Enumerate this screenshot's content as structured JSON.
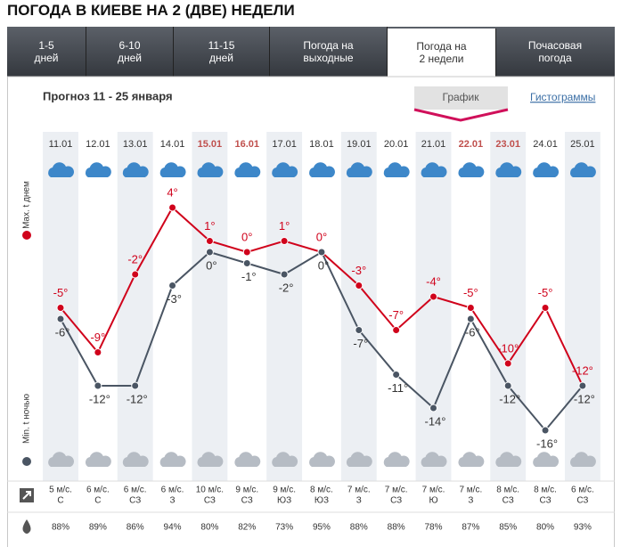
{
  "header": {
    "title": "ПОГОДА В КИЕВЕ НА 2 (ДВЕ) НЕДЕЛИ"
  },
  "tabs": [
    {
      "line1": "1-5",
      "line2": "дней"
    },
    {
      "line1": "6-10",
      "line2": "дней"
    },
    {
      "line1": "11-15",
      "line2": "дней"
    },
    {
      "line1": "Погода на",
      "line2": "выходные"
    },
    {
      "line1": "Погода на",
      "line2": "2 недели"
    },
    {
      "line1": "Почасовая",
      "line2": "погода"
    }
  ],
  "forecast_title": "Прогноз 11 - 25 января",
  "view_buttons": [
    "График",
    "Гистограммы"
  ],
  "chart_data": {
    "type": "line",
    "categories": [
      "11.01",
      "12.01",
      "13.01",
      "14.01",
      "15.01",
      "16.01",
      "17.01",
      "18.01",
      "19.01",
      "20.01",
      "21.01",
      "22.01",
      "23.01",
      "24.01",
      "25.01"
    ],
    "category_colors": [
      "#333",
      "#333",
      "#333",
      "#333",
      "#c0504d",
      "#c0504d",
      "#333",
      "#333",
      "#333",
      "#333",
      "#333",
      "#c0504d",
      "#c0504d",
      "#333",
      "#333"
    ],
    "series": [
      {
        "name": "Max. t днем",
        "color": "#d0021b",
        "values": [
          -5,
          -9,
          -2,
          4,
          1,
          0,
          1,
          0,
          -3,
          -7,
          -4,
          -5,
          -10,
          -5,
          -12
        ],
        "value_labels": [
          "-5°",
          "-9°",
          "-2°",
          "4°",
          "1°",
          "0°",
          "1°",
          "0°",
          "-3°",
          "-7°",
          "-4°",
          "-5°",
          "-10°",
          "-5°",
          "-12°"
        ]
      },
      {
        "name": "Min. t ночью",
        "color": "#4a5563",
        "values": [
          -6,
          -12,
          -12,
          -3,
          0,
          -1,
          -2,
          0,
          -7,
          -11,
          -14,
          -6,
          -12,
          -16,
          -12
        ],
        "value_labels": [
          "-6°",
          "-12°",
          "-12°",
          "-3°",
          "0°",
          "-1°",
          "-2°",
          "0°",
          "-7°",
          "-11°",
          "-14°",
          "-6°",
          "-12°",
          "-16°",
          "-12°"
        ]
      }
    ]
  },
  "wind": {
    "speed": [
      "5 м/с.",
      "6 м/с.",
      "6 м/с.",
      "6 м/с.",
      "10 м/с.",
      "9 м/с.",
      "9 м/с.",
      "8 м/с.",
      "7 м/с.",
      "7 м/с.",
      "7 м/с.",
      "7 м/с.",
      "8 м/с.",
      "8 м/с.",
      "6 м/с."
    ],
    "direction": [
      "С",
      "С",
      "СЗ",
      "З",
      "СЗ",
      "СЗ",
      "ЮЗ",
      "ЮЗ",
      "З",
      "СЗ",
      "Ю",
      "З",
      "СЗ",
      "СЗ",
      "СЗ"
    ]
  },
  "humidity": [
    "88%",
    "89%",
    "86%",
    "94%",
    "80%",
    "82%",
    "73%",
    "95%",
    "88%",
    "88%",
    "78%",
    "87%",
    "85%",
    "80%",
    "93%"
  ]
}
